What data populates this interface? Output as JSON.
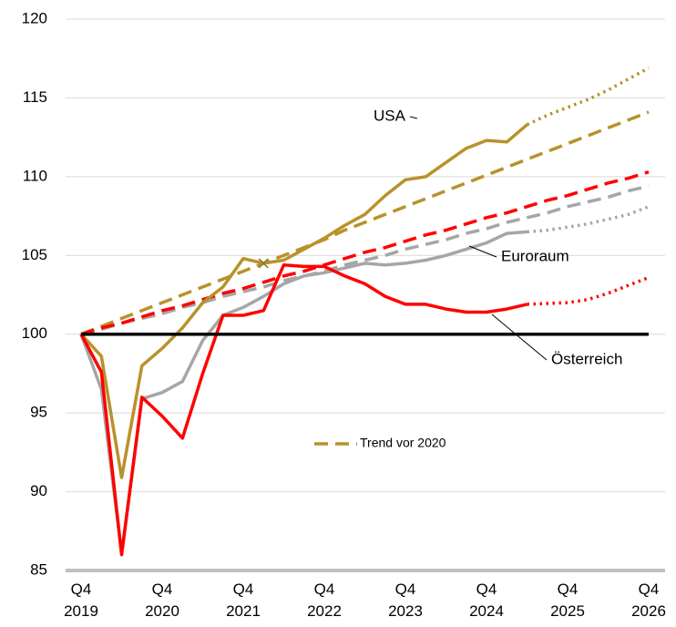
{
  "chart_data": {
    "type": "line",
    "categories": [
      "Q4 2019",
      null,
      null,
      null,
      "Q4 2020",
      null,
      null,
      null,
      "Q4 2021",
      null,
      null,
      null,
      "Q4 2022",
      null,
      null,
      null,
      "Q4 2023",
      null,
      null,
      null,
      "Q4 2024",
      null,
      null,
      null,
      "Q4 2025",
      null,
      null,
      null,
      "Q4 2026"
    ],
    "ylim": [
      85,
      120
    ],
    "yticks": [
      85,
      90,
      95,
      100,
      105,
      110,
      115,
      120
    ],
    "grid": true,
    "reference_line": {
      "value": 100,
      "color": "#000000"
    },
    "legend": {
      "label": "Trend vor 2020",
      "color": "#b8922a",
      "style": "dashed"
    },
    "series": [
      {
        "color": "#a6a6a6",
        "style": "dashed",
        "values": [
          100,
          100.3,
          100.7,
          101.0,
          101.3,
          101.7,
          102.0,
          102.4,
          102.7,
          103.0,
          103.4,
          103.7,
          104.0,
          104.4,
          104.7,
          105.0,
          105.4,
          105.7,
          106.0,
          106.4,
          106.7,
          107.1,
          107.4,
          107.7,
          108.1,
          108.4,
          108.7,
          109.1,
          109.4
        ]
      },
      {
        "color": "#b8922a",
        "style": "dashed",
        "values": [
          100,
          100.5,
          101.0,
          101.5,
          102.0,
          102.5,
          103.0,
          103.5,
          104.0,
          104.5,
          105.0,
          105.5,
          106.0,
          106.6,
          107.1,
          107.6,
          108.1,
          108.6,
          109.1,
          109.6,
          110.1,
          110.6,
          111.1,
          111.6,
          112.1,
          112.6,
          113.1,
          113.6,
          114.1
        ]
      },
      {
        "color": "#ff0000",
        "style": "dashed",
        "values": [
          100,
          100.4,
          100.7,
          101.1,
          101.5,
          101.8,
          102.2,
          102.6,
          102.9,
          103.3,
          103.7,
          104.0,
          104.4,
          104.8,
          105.2,
          105.5,
          105.9,
          106.3,
          106.6,
          107.0,
          107.4,
          107.7,
          108.1,
          108.5,
          108.8,
          109.2,
          109.6,
          109.9,
          110.3
        ]
      },
      {
        "name": "Euroraum",
        "color": "#a6a6a6",
        "style": "solid",
        "values": [
          100,
          96.5,
          86.1,
          95.9,
          96.3,
          97.0,
          99.6,
          101.2,
          101.7,
          102.4,
          103.2,
          103.7,
          103.9,
          104.2,
          104.5,
          104.4,
          104.5,
          104.7,
          105.0,
          105.4,
          105.8,
          106.4,
          106.5,
          null,
          null,
          null,
          null,
          null,
          null
        ]
      },
      {
        "color": "#a6a6a6",
        "style": "dotted",
        "values": [
          null,
          null,
          null,
          null,
          null,
          null,
          null,
          null,
          null,
          null,
          null,
          null,
          null,
          null,
          null,
          null,
          null,
          null,
          null,
          null,
          null,
          null,
          106.5,
          106.6,
          106.8,
          107.0,
          107.3,
          107.6,
          108.1
        ]
      },
      {
        "name": "USA",
        "color": "#b8922a",
        "style": "solid",
        "marker_index": 9,
        "values": [
          100,
          98.6,
          90.9,
          98.0,
          99.1,
          100.4,
          102.0,
          103.0,
          104.8,
          104.5,
          104.7,
          105.4,
          106.1,
          106.9,
          107.6,
          108.8,
          109.8,
          110.0,
          110.9,
          111.8,
          112.3,
          112.2,
          113.3,
          null,
          null,
          null,
          null,
          null,
          null
        ]
      },
      {
        "color": "#b8922a",
        "style": "dotted",
        "values": [
          null,
          null,
          null,
          null,
          null,
          null,
          null,
          null,
          null,
          null,
          null,
          null,
          null,
          null,
          null,
          null,
          null,
          null,
          null,
          null,
          null,
          null,
          113.3,
          113.9,
          114.4,
          114.9,
          115.5,
          116.2,
          116.9
        ]
      },
      {
        "name": "Österreich",
        "color": "#ff0000",
        "style": "solid",
        "values": [
          100,
          97.6,
          86.0,
          96.0,
          94.8,
          93.4,
          97.5,
          101.2,
          101.2,
          101.5,
          104.4,
          104.3,
          104.3,
          103.7,
          103.2,
          102.4,
          101.9,
          101.9,
          101.6,
          101.4,
          101.4,
          101.6,
          101.9,
          null,
          null,
          null,
          null,
          null,
          null
        ]
      },
      {
        "color": "#ff0000",
        "style": "dotted",
        "values": [
          null,
          null,
          null,
          null,
          null,
          null,
          null,
          null,
          null,
          null,
          null,
          null,
          null,
          null,
          null,
          null,
          null,
          null,
          null,
          null,
          null,
          null,
          101.9,
          101.95,
          102.0,
          102.2,
          102.6,
          103.1,
          103.6
        ]
      }
    ]
  }
}
